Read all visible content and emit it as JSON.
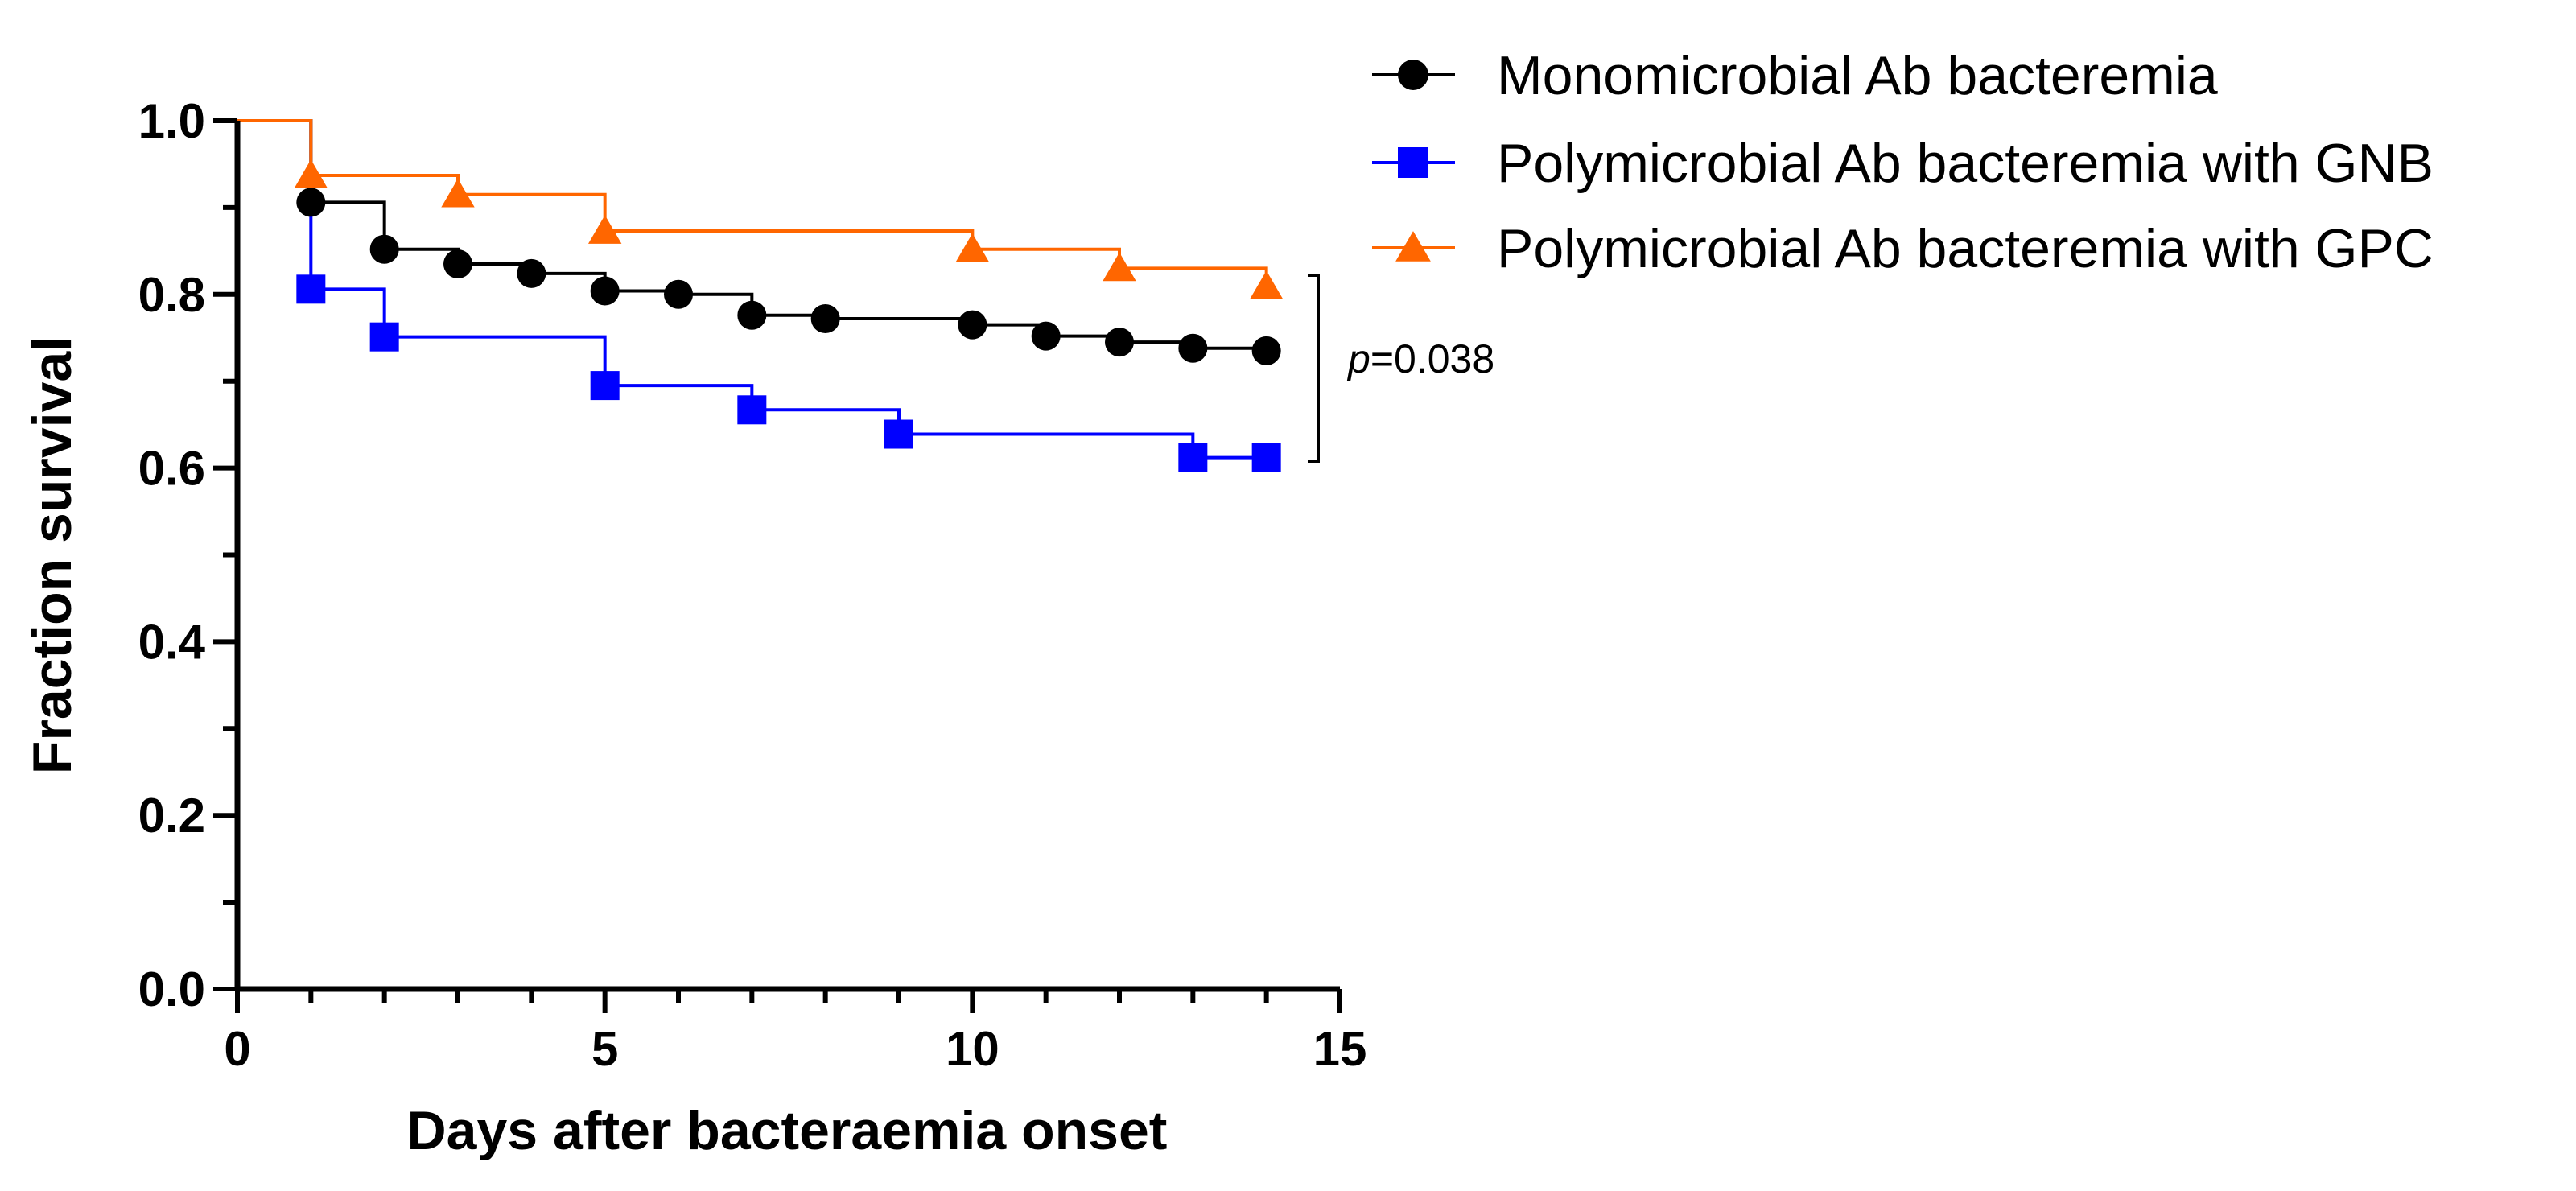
{
  "chart_data": {
    "type": "line",
    "subtype": "kaplan-meier-step",
    "title": "",
    "xlabel": "Days after bacteraemia onset",
    "ylabel": "Fraction survival",
    "xlim": [
      0,
      15
    ],
    "ylim": [
      0,
      1.0
    ],
    "x_ticks": [
      0,
      5,
      10,
      15
    ],
    "x_tick_labels": [
      "0",
      "5",
      "10",
      "15"
    ],
    "x_minor_step": 1,
    "y_ticks": [
      0,
      0.2,
      0.4,
      0.6,
      0.8,
      1.0
    ],
    "y_tick_labels": [
      "0.0",
      "0.2",
      "0.4",
      "0.6",
      "0.8",
      "1.0"
    ],
    "y_minor_step": 0.1,
    "grid": false,
    "legend_position": "top-right",
    "series": [
      {
        "name": "Monomicrobial Ab bacteremia",
        "color": "#000000",
        "marker": "circle",
        "start": 1.0,
        "steps": [
          {
            "x": 1,
            "y": 0.906
          },
          {
            "x": 2,
            "y": 0.852
          },
          {
            "x": 3,
            "y": 0.835
          },
          {
            "x": 4,
            "y": 0.824
          },
          {
            "x": 5,
            "y": 0.804
          },
          {
            "x": 6,
            "y": 0.8
          },
          {
            "x": 7,
            "y": 0.776
          },
          {
            "x": 8,
            "y": 0.772
          },
          {
            "x": 10,
            "y": 0.765
          },
          {
            "x": 11,
            "y": 0.752
          },
          {
            "x": 12,
            "y": 0.745
          },
          {
            "x": 13,
            "y": 0.738
          },
          {
            "x": 14,
            "y": 0.735
          }
        ]
      },
      {
        "name": "Polymicrobial Ab bacteremia with GNB",
        "color": "#0000ff",
        "marker": "square",
        "start": 1.0,
        "steps": [
          {
            "x": 1,
            "y": 0.806
          },
          {
            "x": 2,
            "y": 0.751
          },
          {
            "x": 5,
            "y": 0.695
          },
          {
            "x": 7,
            "y": 0.667
          },
          {
            "x": 9,
            "y": 0.639
          },
          {
            "x": 13,
            "y": 0.612
          },
          {
            "x": 14,
            "y": 0.612
          }
        ]
      },
      {
        "name": "Polymicrobial Ab bacteremia with GPC",
        "color": "#ff6600",
        "marker": "triangle",
        "start": 1.0,
        "steps": [
          {
            "x": 1,
            "y": 0.937
          },
          {
            "x": 3,
            "y": 0.915
          },
          {
            "x": 5,
            "y": 0.873
          },
          {
            "x": 10,
            "y": 0.852
          },
          {
            "x": 12,
            "y": 0.83
          },
          {
            "x": 14,
            "y": 0.809
          }
        ]
      }
    ],
    "annotations": [
      {
        "text_prefix": "p",
        "text_suffix": "=0.038",
        "bracket_y_range": [
          0.612,
          0.82
        ]
      }
    ]
  }
}
